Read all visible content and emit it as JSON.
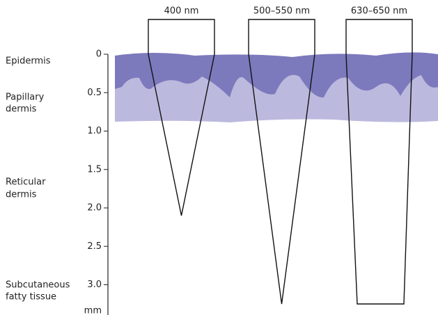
{
  "layers": [
    {
      "lines": [
        "Epidermis"
      ]
    },
    {
      "lines": [
        "Papillary",
        "dermis"
      ]
    },
    {
      "lines": [
        "Reticular",
        "dermis"
      ]
    },
    {
      "lines": [
        "Subcutaneous",
        "fatty tissue"
      ]
    }
  ],
  "depth_axis": {
    "unit": "mm",
    "lim": [
      0,
      3.35
    ],
    "ticks": [
      0,
      0.5,
      {
        "value": 1,
        "label": "1.0"
      },
      1.5,
      {
        "value": 2,
        "label": "2.0"
      },
      2.5,
      {
        "value": 3,
        "label": "3.0"
      }
    ]
  },
  "beams": [
    {
      "label": "400 nm",
      "depth": 2.1,
      "shape": "point"
    },
    {
      "label": "500–550 nm",
      "depth": 3.25,
      "shape": "point"
    },
    {
      "label": "630–650 nm",
      "depth": 3.25,
      "shape": "flat"
    }
  ]
}
